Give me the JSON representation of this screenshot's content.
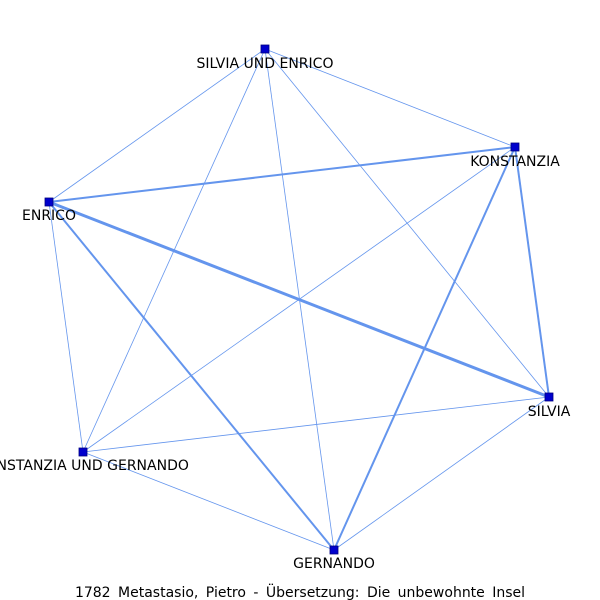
{
  "caption": "1782 Metastasio, Pietro - Übersetzung: Die unbewohnte Insel",
  "colors": {
    "edge": "#6495ed",
    "node_fill": "#0000cd",
    "label": "#000000",
    "background": "#ffffff"
  },
  "network": {
    "nodes": [
      {
        "id": "silvia_und_enrico",
        "label": "SILVIA UND ENRICO"
      },
      {
        "id": "konstanzia",
        "label": "KONSTANZIA"
      },
      {
        "id": "enrico",
        "label": "ENRICO"
      },
      {
        "id": "silvia",
        "label": "SILVIA"
      },
      {
        "id": "konstanzia_und_gernando",
        "label": "KONSTANZIA UND GERNANDO"
      },
      {
        "id": "gernando",
        "label": "GERNANDO"
      }
    ],
    "edges": [
      {
        "source": "enrico",
        "target": "silvia",
        "weight": 3
      },
      {
        "source": "enrico",
        "target": "gernando",
        "weight": 2
      },
      {
        "source": "enrico",
        "target": "konstanzia",
        "weight": 2
      },
      {
        "source": "konstanzia",
        "target": "gernando",
        "weight": 2
      },
      {
        "source": "konstanzia",
        "target": "silvia",
        "weight": 2
      },
      {
        "source": "silvia",
        "target": "gernando",
        "weight": 1
      },
      {
        "source": "silvia_und_enrico",
        "target": "enrico",
        "weight": 1
      },
      {
        "source": "silvia_und_enrico",
        "target": "konstanzia",
        "weight": 1
      },
      {
        "source": "silvia_und_enrico",
        "target": "silvia",
        "weight": 1
      },
      {
        "source": "silvia_und_enrico",
        "target": "gernando",
        "weight": 1
      },
      {
        "source": "silvia_und_enrico",
        "target": "konstanzia_und_gernando",
        "weight": 1
      },
      {
        "source": "enrico",
        "target": "konstanzia_und_gernando",
        "weight": 1
      },
      {
        "source": "konstanzia",
        "target": "konstanzia_und_gernando",
        "weight": 1
      },
      {
        "source": "konstanzia_und_gernando",
        "target": "silvia",
        "weight": 1
      },
      {
        "source": "konstanzia_und_gernando",
        "target": "gernando",
        "weight": 1
      }
    ]
  }
}
